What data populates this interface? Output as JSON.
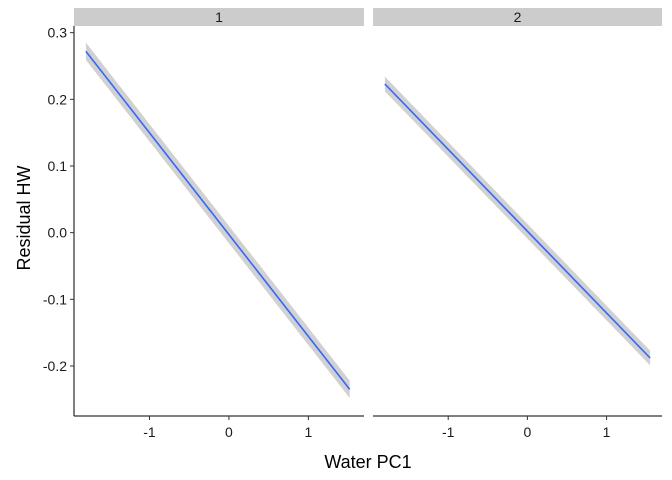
{
  "chart_data": {
    "type": "line",
    "xlabel": "Water PC1",
    "ylabel": "Residual HW",
    "xlim": [
      -1.95,
      1.7
    ],
    "ylim": [
      -0.275,
      0.31
    ],
    "xticks": [
      -1,
      0,
      1
    ],
    "xtick_labels": [
      "-1",
      "0",
      "1"
    ],
    "yticks": [
      -0.2,
      -0.1,
      0.0,
      0.1,
      0.2,
      0.3
    ],
    "ytick_labels": [
      "-0.2",
      "-0.1",
      "0.0",
      "0.1",
      "0.2",
      "0.3"
    ],
    "grid": false,
    "colors": {
      "line": "#3366ff",
      "ribbon": "#b3b3b3",
      "strip": "#cccccc",
      "axis": "#000000"
    },
    "panels": [
      {
        "strip_label": "1",
        "x": [
          -1.8,
          1.52
        ],
        "y": [
          0.272,
          -0.235
        ],
        "ci_halfwidth": 0.013
      },
      {
        "strip_label": "2",
        "x": [
          -1.8,
          1.55
        ],
        "y": [
          0.223,
          -0.188
        ],
        "ci_halfwidth": 0.011
      }
    ]
  }
}
